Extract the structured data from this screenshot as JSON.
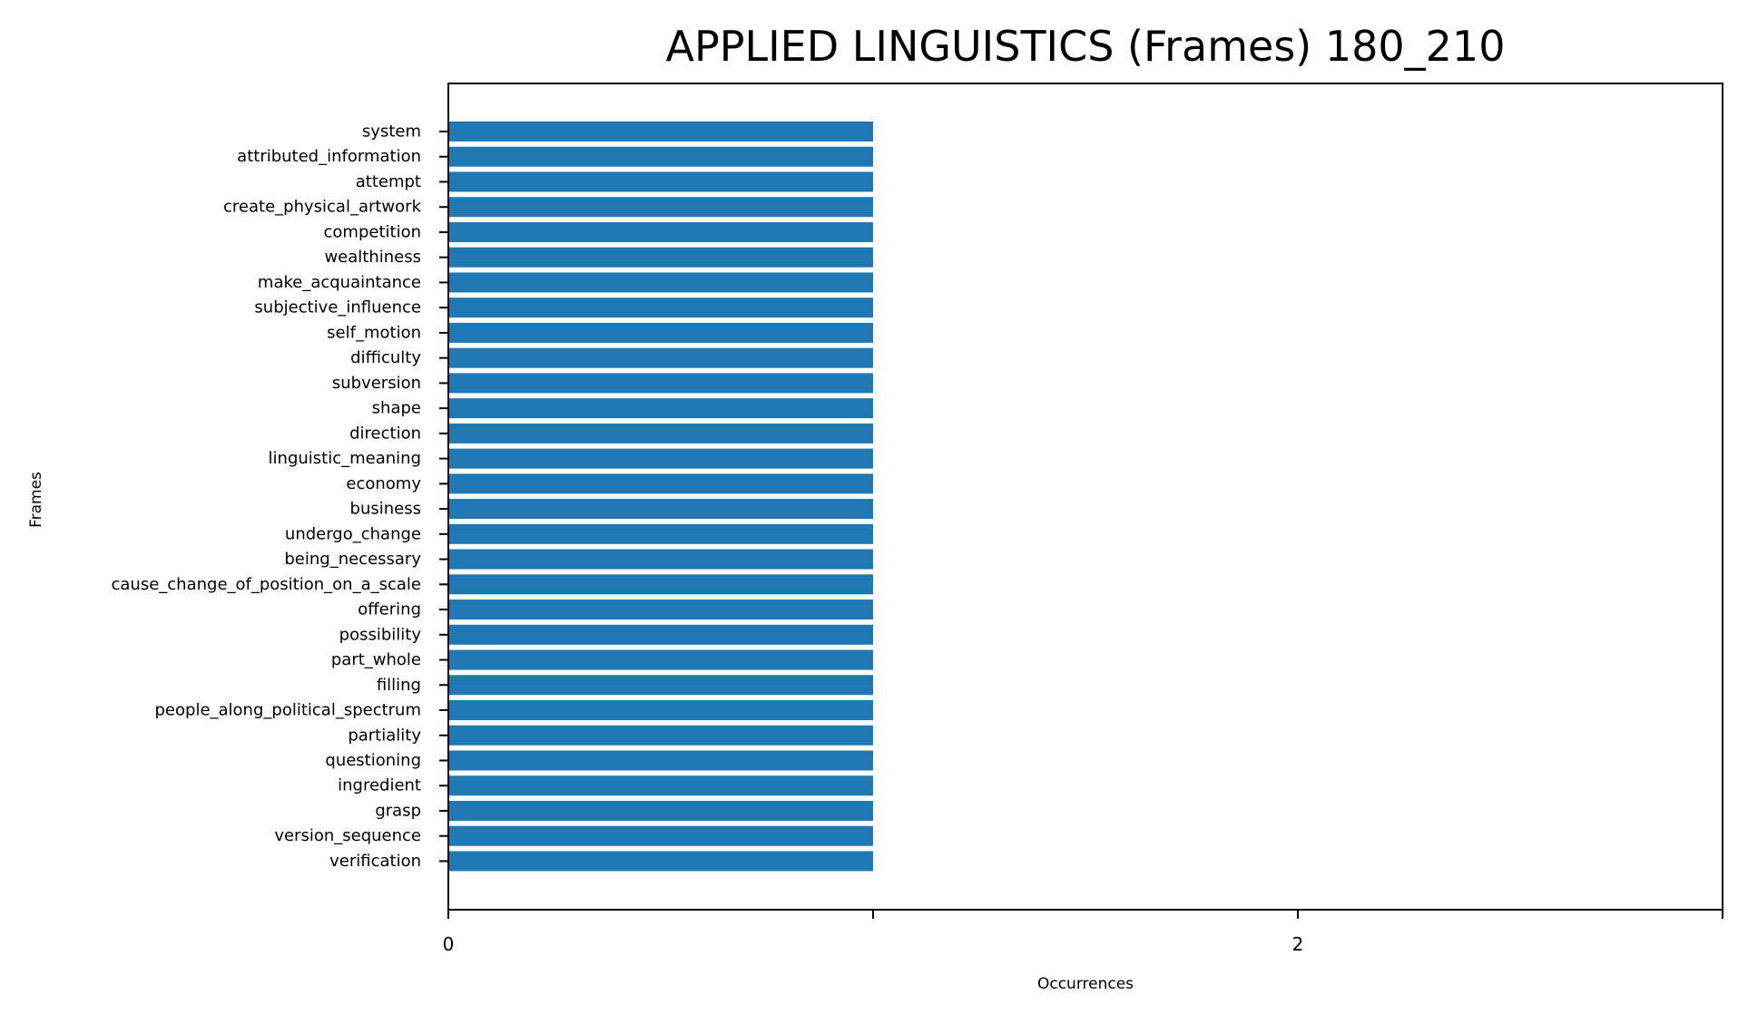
{
  "chart_data": {
    "type": "bar",
    "orientation": "horizontal",
    "title": "APPLIED LINGUISTICS (Frames) 180_210",
    "xlabel": "Occurrences",
    "ylabel": "Frames",
    "categories": [
      "system",
      "attributed_information",
      "attempt",
      "create_physical_artwork",
      "competition",
      "wealthiness",
      "make_acquaintance",
      "subjective_influence",
      "self_motion",
      "difficulty",
      "subversion",
      "shape",
      "direction",
      "linguistic_meaning",
      "economy",
      "business",
      "undergo_change",
      "being_necessary",
      "cause_change_of_position_on_a_scale",
      "offering",
      "possibility",
      "part_whole",
      "filling",
      "people_along_political_spectrum",
      "partiality",
      "questioning",
      "ingredient",
      "grasp",
      "version_sequence",
      "verification"
    ],
    "values": [
      1,
      1,
      1,
      1,
      1,
      1,
      1,
      1,
      1,
      1,
      1,
      1,
      1,
      1,
      1,
      1,
      1,
      1,
      1,
      1,
      1,
      1,
      1,
      1,
      1,
      1,
      1,
      1,
      1,
      1
    ],
    "xlim": [
      0,
      3
    ],
    "xticks": [
      0,
      1,
      2,
      3
    ],
    "xtick_labels": [
      "0",
      "",
      "2",
      ""
    ],
    "grid": false,
    "legend": "none",
    "bar_color": "#1f77b4"
  }
}
